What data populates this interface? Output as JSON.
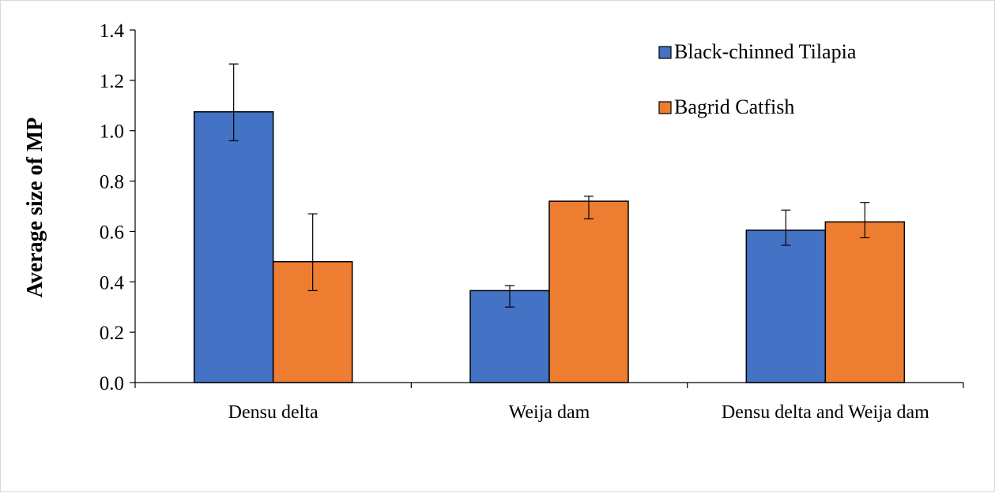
{
  "chart_data": {
    "type": "bar",
    "title": "",
    "xlabel": "",
    "ylabel": "Average size of MP",
    "ylim": [
      0,
      1.4
    ],
    "yticks": [
      "0.0",
      "0.2",
      "0.4",
      "0.6",
      "0.8",
      "1.0",
      "1.2",
      "1.4"
    ],
    "categories": [
      "Densu delta",
      "Weija dam",
      "Densu delta and Weija dam"
    ],
    "series": [
      {
        "name": "Black-chinned Tilapia",
        "color": "#4472c4",
        "values": [
          1.075,
          0.365,
          0.605
        ],
        "error_low": [
          0.96,
          0.3,
          0.545
        ],
        "error_high": [
          1.265,
          0.385,
          0.685
        ]
      },
      {
        "name": "Bagrid Catfish",
        "color": "#ed7d31",
        "values": [
          0.48,
          0.72,
          0.638
        ],
        "error_low": [
          0.365,
          0.65,
          0.575
        ],
        "error_high": [
          0.67,
          0.74,
          0.715
        ]
      }
    ],
    "legend_position": "top-right",
    "grid": false
  }
}
